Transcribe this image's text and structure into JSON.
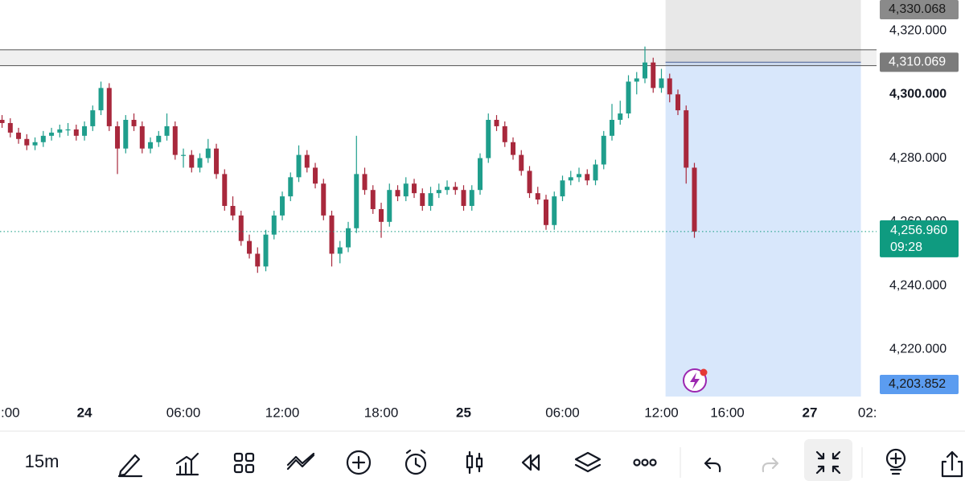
{
  "chart_data": {
    "type": "candlestick",
    "xlim": [
      -0.25,
      106.1
    ],
    "xticks": [
      {
        "value": 1,
        "label": ":00"
      },
      {
        "value": 10,
        "label": "24"
      },
      {
        "value": 22,
        "label": "06:00"
      },
      {
        "value": 34,
        "label": "12:00"
      },
      {
        "value": 46,
        "label": "18:00"
      },
      {
        "value": 56,
        "label": "25"
      },
      {
        "value": 68,
        "label": "06:00"
      },
      {
        "value": 80,
        "label": "12:00"
      },
      {
        "value": 88,
        "label": "16:00"
      },
      {
        "value": 98,
        "label": "27"
      },
      {
        "value": 105,
        "label": "02:"
      }
    ],
    "ylim": [
      4205.2,
      4329.6
    ],
    "yticks": [
      {
        "value": 4220,
        "label": "4,220.000"
      },
      {
        "value": 4240,
        "label": "4,240.000"
      },
      {
        "value": 4260,
        "label": "4,260.000"
      },
      {
        "value": 4280,
        "label": "4,280.000"
      },
      {
        "value": 4300,
        "label": "4,300.000"
      },
      {
        "value": 4320,
        "label": "4,320.000"
      }
    ],
    "up_color": "#1f9e8c",
    "down_color": "#a8283c",
    "candles": [
      [
        4292,
        4293.5,
        4289.5,
        4291
      ],
      [
        4291,
        4292.5,
        4286.5,
        4288
      ],
      [
        4288,
        4289.5,
        4284.5,
        4286
      ],
      [
        4286,
        4287.5,
        4282.5,
        4284
      ],
      [
        4284,
        4286.5,
        4282.5,
        4285
      ],
      [
        4285,
        4288.5,
        4283.5,
        4287
      ],
      [
        4287,
        4289.5,
        4285.5,
        4288
      ],
      [
        4288,
        4290.5,
        4286.5,
        4289
      ],
      [
        4289,
        4291,
        4287,
        4289
      ],
      [
        4289,
        4290.5,
        4285.5,
        4287
      ],
      [
        4287,
        4291.5,
        4285.5,
        4290
      ],
      [
        4290,
        4296.5,
        4288.5,
        4295
      ],
      [
        4295,
        4304,
        4293.5,
        4302
      ],
      [
        4302,
        4303.5,
        4288.5,
        4290
      ],
      [
        4290,
        4291.5,
        4275,
        4283
      ],
      [
        4283,
        4293.5,
        4281.5,
        4292
      ],
      [
        4292,
        4294,
        4288.5,
        4290
      ],
      [
        4290,
        4291.5,
        4281.5,
        4283
      ],
      [
        4283,
        4286.5,
        4281.5,
        4285
      ],
      [
        4285,
        4288.5,
        4283.5,
        4287
      ],
      [
        4287,
        4294,
        4285.5,
        4290
      ],
      [
        4290,
        4291.5,
        4279.5,
        4281
      ],
      [
        4281,
        4283,
        4277,
        4281
      ],
      [
        4281,
        4282.5,
        4275.5,
        4277
      ],
      [
        4277,
        4281.5,
        4275.5,
        4280
      ],
      [
        4280,
        4286,
        4278.5,
        4283
      ],
      [
        4283,
        4284.5,
        4273.5,
        4275
      ],
      [
        4275,
        4276.5,
        4263.5,
        4265
      ],
      [
        4265,
        4268,
        4260.5,
        4262
      ],
      [
        4262,
        4263.5,
        4252.5,
        4254
      ],
      [
        4254,
        4256,
        4248.5,
        4250
      ],
      [
        4250,
        4252,
        4244,
        4246
      ],
      [
        4246,
        4257.5,
        4244.5,
        4256
      ],
      [
        4256,
        4263.5,
        4254.5,
        4262
      ],
      [
        4262,
        4269.5,
        4260.5,
        4268
      ],
      [
        4268,
        4275.5,
        4266.5,
        4274
      ],
      [
        4274,
        4284,
        4272.5,
        4281
      ],
      [
        4281,
        4282.5,
        4275.5,
        4277
      ],
      [
        4277,
        4278.5,
        4270.5,
        4272
      ],
      [
        4272,
        4273.5,
        4260.5,
        4262
      ],
      [
        4262,
        4263.5,
        4246,
        4250
      ],
      [
        4250,
        4254,
        4247,
        4252
      ],
      [
        4252,
        4260,
        4250.5,
        4258
      ],
      [
        4258,
        4287,
        4256.5,
        4275
      ],
      [
        4275,
        4277,
        4268.5,
        4270
      ],
      [
        4270,
        4271.5,
        4262.5,
        4264
      ],
      [
        4264,
        4266,
        4255,
        4260
      ],
      [
        4260,
        4272,
        4258.5,
        4270
      ],
      [
        4270,
        4271.5,
        4266.5,
        4268
      ],
      [
        4268,
        4274,
        4266.5,
        4272
      ],
      [
        4272,
        4273.5,
        4267.5,
        4269
      ],
      [
        4269,
        4270.5,
        4263.5,
        4265
      ],
      [
        4265,
        4271,
        4263.5,
        4269
      ],
      [
        4269,
        4272,
        4267.5,
        4270
      ],
      [
        4270,
        4273,
        4268.5,
        4271
      ],
      [
        4271,
        4272.5,
        4268.5,
        4270
      ],
      [
        4270,
        4271.5,
        4263.5,
        4265
      ],
      [
        4265,
        4271.5,
        4263.5,
        4270
      ],
      [
        4270,
        4281.5,
        4268.5,
        4280
      ],
      [
        4280,
        4294,
        4278.5,
        4292
      ],
      [
        4292,
        4293.5,
        4288.5,
        4290
      ],
      [
        4290,
        4291.5,
        4283.5,
        4285
      ],
      [
        4285,
        4286.5,
        4279.5,
        4281
      ],
      [
        4281,
        4282.5,
        4274.5,
        4276
      ],
      [
        4276,
        4277.5,
        4267.5,
        4269
      ],
      [
        4269,
        4271,
        4265.5,
        4267
      ],
      [
        4267,
        4268.5,
        4257.5,
        4259
      ],
      [
        4259,
        4269.5,
        4257.5,
        4268
      ],
      [
        4268,
        4274.5,
        4266.5,
        4273
      ],
      [
        4273,
        4276,
        4271.5,
        4274
      ],
      [
        4274,
        4277,
        4272.5,
        4275
      ],
      [
        4275,
        4276.5,
        4271.5,
        4273
      ],
      [
        4273,
        4279.5,
        4271.5,
        4278
      ],
      [
        4278,
        4288.5,
        4276.5,
        4287
      ],
      [
        4287,
        4297,
        4285.5,
        4292
      ],
      [
        4292,
        4298,
        4290.5,
        4294
      ],
      [
        4294,
        4306,
        4292.5,
        4304
      ],
      [
        4304,
        4307,
        4300,
        4305
      ],
      [
        4305,
        4315,
        4303.5,
        4310
      ],
      [
        4310,
        4311.5,
        4300.5,
        4302
      ],
      [
        4302,
        4308,
        4300.5,
        4305
      ],
      [
        4305,
        4306.5,
        4297.5,
        4300
      ],
      [
        4300,
        4301.5,
        4293.5,
        4295
      ],
      [
        4295,
        4296.5,
        4272,
        4277
      ],
      [
        4277,
        4278.5,
        4255,
        4256.96
      ]
    ],
    "last_price": {
      "value": 4256.96,
      "label": "4,256.960",
      "countdown": "09:28",
      "color": "#0f9b80"
    },
    "position": {
      "stop": {
        "value": 4330.068,
        "label": "4,330.068"
      },
      "entry": {
        "value": 4310.069,
        "label": "4,310.069"
      },
      "target": {
        "value": 4203.852,
        "label": "4,203.852"
      },
      "start": 80.5,
      "end": 104.2
    },
    "zone": [
      4309,
      4314
    ]
  },
  "toolbar": {
    "interval": "15m"
  }
}
